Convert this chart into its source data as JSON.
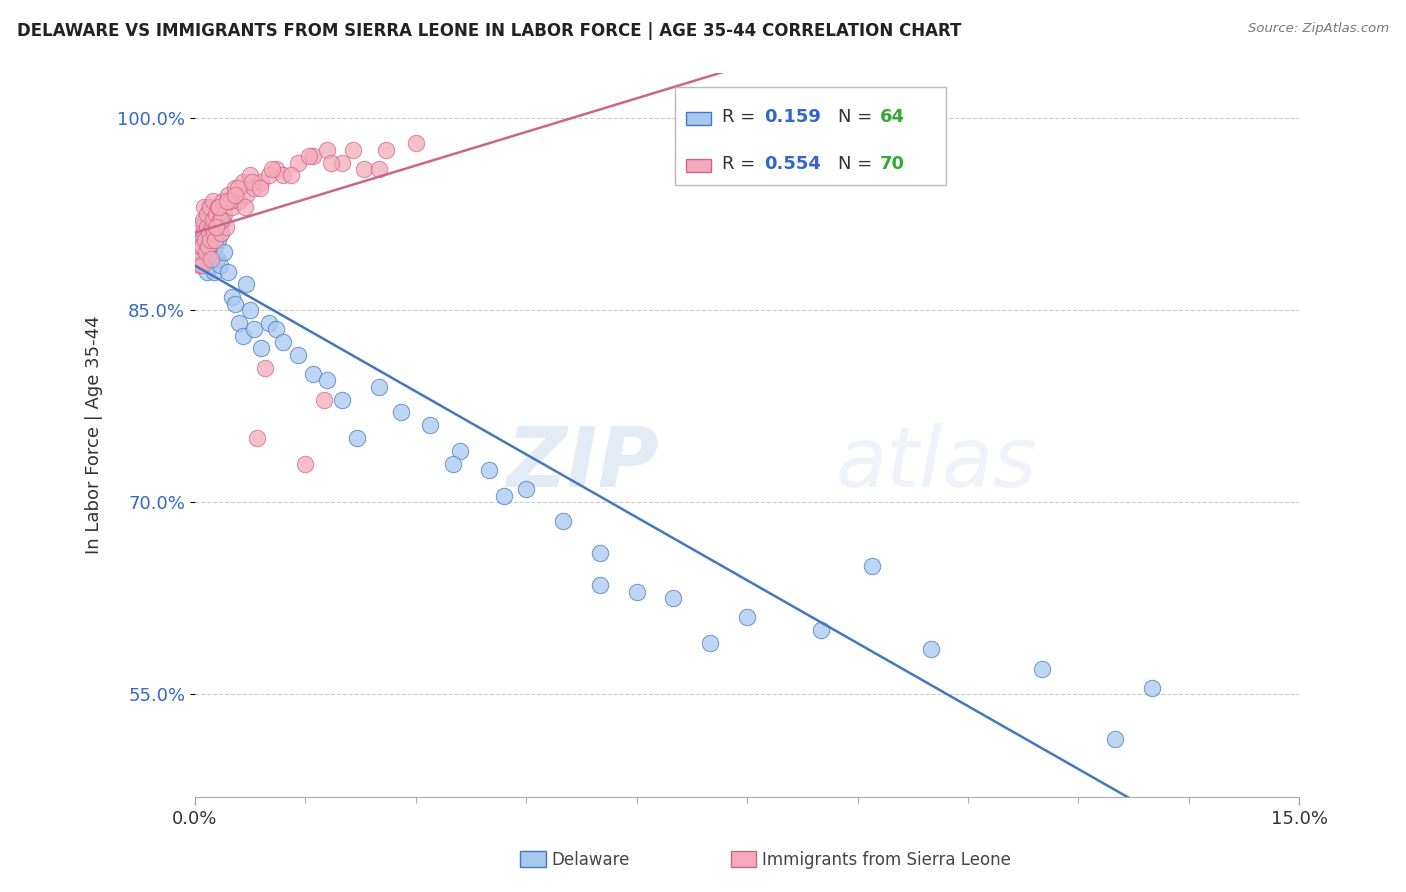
{
  "title": "DELAWARE VS IMMIGRANTS FROM SIERRA LEONE IN LABOR FORCE | AGE 35-44 CORRELATION CHART",
  "source": "Source: ZipAtlas.com",
  "ylabel": "In Labor Force | Age 35-44",
  "y_ticks": [
    55.0,
    70.0,
    85.0,
    100.0
  ],
  "x_min": 0.0,
  "x_max": 15.0,
  "y_min": 47.0,
  "y_max": 103.5,
  "color_delaware": "#A8C8F0",
  "color_sierra": "#F4AABB",
  "color_line_delaware": "#4477BB",
  "color_line_sierra": "#CC6688",
  "label_delaware": "Delaware",
  "label_sierra": "Immigrants from Sierra Leone",
  "watermark_zip": "ZIP",
  "watermark_atlas": "atlas",
  "r_del": "0.159",
  "n_del": "64",
  "r_sie": "0.554",
  "n_sie": "70",
  "r_color": "#3366CC",
  "n_color": "#33AA33",
  "del_x": [
    0.05,
    0.08,
    0.1,
    0.12,
    0.13,
    0.14,
    0.15,
    0.16,
    0.17,
    0.18,
    0.19,
    0.2,
    0.21,
    0.22,
    0.23,
    0.24,
    0.25,
    0.26,
    0.27,
    0.28,
    0.3,
    0.32,
    0.34,
    0.36,
    0.38,
    0.4,
    0.45,
    0.5,
    0.55,
    0.6,
    0.65,
    0.7,
    0.75,
    0.8,
    0.9,
    1.0,
    1.1,
    1.2,
    1.4,
    1.6,
    1.8,
    2.0,
    2.2,
    2.5,
    2.8,
    3.2,
    3.6,
    4.0,
    4.5,
    5.0,
    5.5,
    6.0,
    6.5,
    7.5,
    8.5,
    10.0,
    11.5,
    13.0,
    5.5,
    7.0,
    4.2,
    9.2,
    12.5,
    3.5
  ],
  "del_y": [
    91.0,
    88.5,
    90.5,
    89.0,
    91.5,
    92.0,
    90.0,
    88.0,
    89.5,
    91.0,
    93.0,
    88.5,
    90.0,
    91.5,
    90.5,
    89.0,
    92.5,
    88.0,
    90.0,
    91.5,
    89.0,
    90.5,
    88.5,
    91.0,
    92.0,
    89.5,
    88.0,
    86.0,
    85.5,
    84.0,
    83.0,
    87.0,
    85.0,
    83.5,
    82.0,
    84.0,
    83.5,
    82.5,
    81.5,
    80.0,
    79.5,
    78.0,
    75.0,
    79.0,
    77.0,
    76.0,
    74.0,
    72.5,
    71.0,
    68.5,
    66.0,
    63.0,
    62.5,
    61.0,
    60.0,
    58.5,
    57.0,
    55.5,
    63.5,
    59.0,
    70.5,
    65.0,
    51.5,
    73.0
  ],
  "sie_x": [
    0.05,
    0.06,
    0.07,
    0.08,
    0.09,
    0.1,
    0.11,
    0.12,
    0.13,
    0.14,
    0.15,
    0.16,
    0.17,
    0.18,
    0.19,
    0.2,
    0.21,
    0.22,
    0.23,
    0.24,
    0.25,
    0.26,
    0.27,
    0.28,
    0.3,
    0.32,
    0.34,
    0.36,
    0.38,
    0.4,
    0.42,
    0.45,
    0.5,
    0.55,
    0.6,
    0.65,
    0.7,
    0.75,
    0.8,
    0.9,
    1.0,
    1.1,
    1.2,
    1.4,
    1.6,
    1.8,
    2.0,
    2.3,
    2.6,
    3.0,
    0.35,
    0.48,
    0.58,
    0.68,
    0.78,
    0.88,
    1.05,
    1.3,
    1.55,
    1.85,
    2.15,
    0.95,
    1.5,
    0.33,
    0.29,
    0.44,
    0.54,
    2.5,
    0.85,
    1.75
  ],
  "sie_y": [
    88.5,
    89.0,
    90.0,
    91.5,
    90.0,
    88.5,
    92.0,
    91.0,
    93.0,
    90.5,
    89.5,
    91.5,
    92.5,
    90.0,
    91.0,
    93.0,
    90.5,
    89.0,
    91.5,
    92.0,
    93.5,
    91.0,
    90.5,
    92.5,
    91.5,
    93.0,
    92.0,
    91.0,
    93.5,
    92.5,
    91.5,
    94.0,
    93.0,
    94.5,
    93.5,
    95.0,
    94.0,
    95.5,
    94.5,
    95.0,
    95.5,
    96.0,
    95.5,
    96.5,
    97.0,
    97.5,
    96.5,
    96.0,
    97.5,
    98.0,
    92.0,
    93.5,
    94.5,
    93.0,
    95.0,
    94.5,
    96.0,
    95.5,
    97.0,
    96.5,
    97.5,
    80.5,
    73.0,
    93.0,
    91.5,
    93.5,
    94.0,
    96.0,
    75.0,
    78.0
  ]
}
